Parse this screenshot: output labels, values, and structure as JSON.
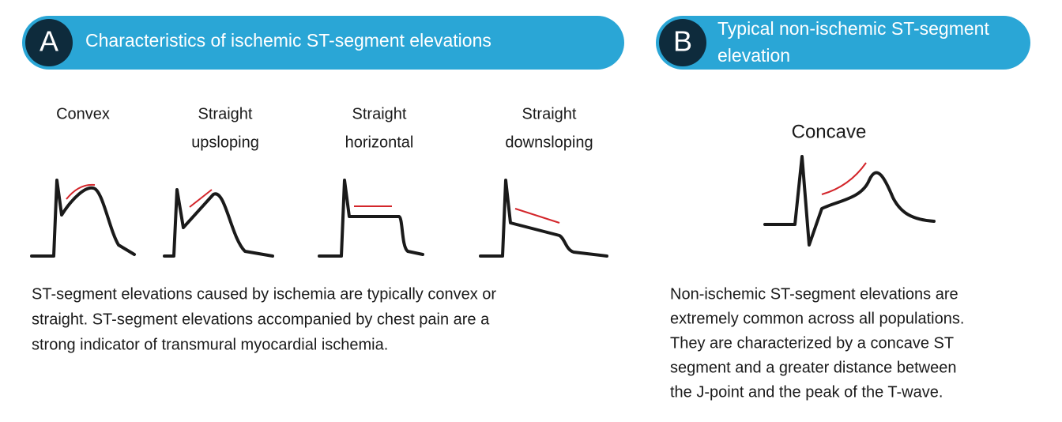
{
  "panel_a": {
    "letter": "A",
    "title": "Characteristics of ischemic ST-segment elevations",
    "waveforms": [
      {
        "label": [
          "Convex"
        ]
      },
      {
        "label": [
          "Straight",
          "upsloping"
        ]
      },
      {
        "label": [
          "Straight",
          "horizontal"
        ]
      },
      {
        "label": [
          "Straight",
          "downsloping"
        ]
      }
    ],
    "description": [
      "ST-segment elevations caused by ischemia are typically convex or",
      "straight. ST-segment elevations accompanied by chest pain are a",
      "strong indicator of transmural myocardial ischemia."
    ]
  },
  "panel_b": {
    "letter": "B",
    "title": [
      "Typical non-ischemic ST-segment",
      "elevation"
    ],
    "waveform": {
      "label": "Concave"
    },
    "description": [
      "Non-ischemic ST-segment elevations are",
      "extremely common across all populations.",
      "They are characterized by a concave ST",
      "segment and a greater distance between",
      "the J-point and the peak of the T-wave."
    ]
  }
}
